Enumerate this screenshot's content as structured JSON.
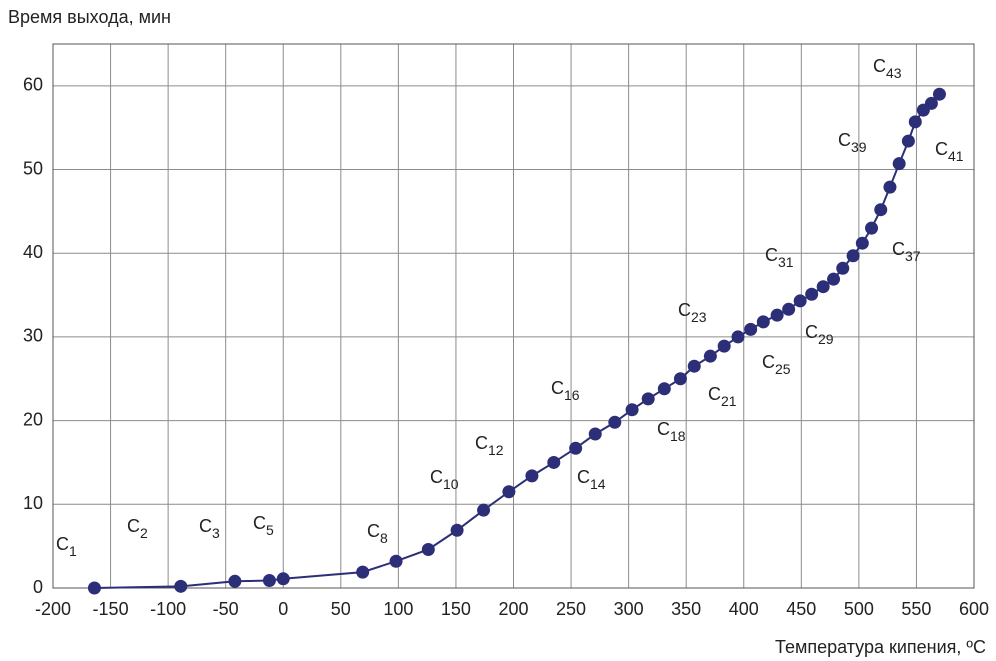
{
  "chart_data": {
    "type": "line",
    "y_label": "Время выхода, мин",
    "x_label": "Температура кипения, ºC",
    "x": [
      -164,
      -89,
      -42,
      -12,
      0,
      69,
      98,
      126,
      151,
      174,
      196,
      216,
      235,
      254,
      271,
      288,
      303,
      317,
      331,
      345,
      357,
      371,
      383,
      395,
      406,
      417,
      429,
      439,
      449,
      459,
      469,
      478,
      486,
      495,
      503,
      511,
      519,
      527,
      535,
      543,
      549,
      556,
      563,
      570
    ],
    "series": [
      {
        "color": "#2c2f78",
        "values": [
          0,
          0.2,
          0.8,
          0.9,
          1.1,
          1.9,
          3.2,
          4.6,
          6.9,
          9.3,
          11.5,
          13.4,
          15.0,
          16.7,
          18.4,
          19.8,
          21.3,
          22.6,
          23.8,
          25.0,
          26.5,
          27.7,
          28.9,
          30.0,
          30.9,
          31.8,
          32.6,
          33.3,
          34.3,
          35.1,
          36.0,
          36.9,
          38.2,
          39.7,
          41.2,
          43.0,
          45.2,
          47.9,
          50.7,
          53.4,
          55.7,
          57.1,
          57.9,
          59.0
        ]
      }
    ],
    "xlim": [
      -200,
      600
    ],
    "xticks": [
      -200,
      -150,
      -100,
      -50,
      0,
      50,
      100,
      150,
      200,
      250,
      300,
      350,
      400,
      450,
      500,
      550,
      600
    ],
    "ylim": [
      0,
      65
    ],
    "yticks": [
      0,
      10,
      20,
      30,
      40,
      50,
      60
    ],
    "grid": true,
    "annotations": [
      {
        "label": "C",
        "subscript": "1"
      },
      {
        "label": "C",
        "subscript": "2"
      },
      {
        "label": "C",
        "subscript": "3"
      },
      {
        "label": "C",
        "subscript": "5"
      },
      {
        "label": "C",
        "subscript": "8"
      },
      {
        "label": "C",
        "subscript": "10"
      },
      {
        "label": "C",
        "subscript": "12"
      },
      {
        "label": "C",
        "subscript": "14"
      },
      {
        "label": "C",
        "subscript": "16"
      },
      {
        "label": "C",
        "subscript": "18"
      },
      {
        "label": "C",
        "subscript": "21"
      },
      {
        "label": "C",
        "subscript": "23"
      },
      {
        "label": "C",
        "subscript": "25"
      },
      {
        "label": "C",
        "subscript": "29"
      },
      {
        "label": "C",
        "subscript": "31"
      },
      {
        "label": "C",
        "subscript": "37"
      },
      {
        "label": "C",
        "subscript": "39"
      },
      {
        "label": "C",
        "subscript": "41"
      },
      {
        "label": "C",
        "subscript": "43"
      }
    ]
  }
}
